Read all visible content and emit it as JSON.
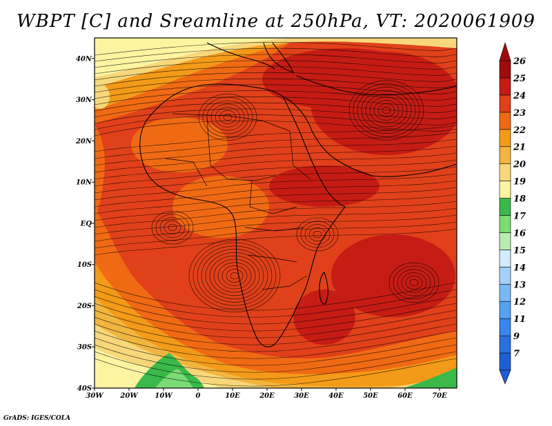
{
  "title": "WBPT [C] and Sreamline at 250hPa, VT: 2020061909",
  "credit": "GrADS: IGES/COLA",
  "map": {
    "lon_range": [
      -30,
      75
    ],
    "lat_range": [
      -40,
      45
    ],
    "x_ticks": [
      {
        "value": -30,
        "label": "30W"
      },
      {
        "value": -20,
        "label": "20W"
      },
      {
        "value": -10,
        "label": "10W"
      },
      {
        "value": 0,
        "label": "0"
      },
      {
        "value": 10,
        "label": "10E"
      },
      {
        "value": 20,
        "label": "20E"
      },
      {
        "value": 30,
        "label": "30E"
      },
      {
        "value": 40,
        "label": "40E"
      },
      {
        "value": 50,
        "label": "50E"
      },
      {
        "value": 60,
        "label": "60E"
      },
      {
        "value": 70,
        "label": "70E"
      }
    ],
    "y_ticks": [
      {
        "value": 40,
        "label": "40N"
      },
      {
        "value": 30,
        "label": "30N"
      },
      {
        "value": 20,
        "label": "20N"
      },
      {
        "value": 10,
        "label": "10N"
      },
      {
        "value": 0,
        "label": "EQ"
      },
      {
        "value": -10,
        "label": "10S"
      },
      {
        "value": -20,
        "label": "20S"
      },
      {
        "value": -30,
        "label": "30S"
      },
      {
        "value": -40,
        "label": "40S"
      }
    ],
    "colorbar": [
      {
        "label": "7",
        "color": "#1f5fd6"
      },
      {
        "label": "9",
        "color": "#2a70e0"
      },
      {
        "label": "11",
        "color": "#3a86ec"
      },
      {
        "label": "12",
        "color": "#56a0f2"
      },
      {
        "label": "13",
        "color": "#7ab8f6"
      },
      {
        "label": "14",
        "color": "#a4d0fa"
      },
      {
        "label": "15",
        "color": "#d2ecfc"
      },
      {
        "label": "16",
        "color": "#b8ecb0"
      },
      {
        "label": "17",
        "color": "#7cdc74"
      },
      {
        "label": "18",
        "color": "#3ab94a"
      },
      {
        "label": "19",
        "color": "#fdf4a2"
      },
      {
        "label": "20",
        "color": "#f7d77a"
      },
      {
        "label": "21",
        "color": "#f1b540"
      },
      {
        "label": "22",
        "color": "#f39a18"
      },
      {
        "label": "23",
        "color": "#f06a14"
      },
      {
        "label": "24",
        "color": "#e0401a"
      },
      {
        "label": "25",
        "color": "#c51c14"
      },
      {
        "label": "26",
        "color": "#a00c0c"
      }
    ]
  }
}
